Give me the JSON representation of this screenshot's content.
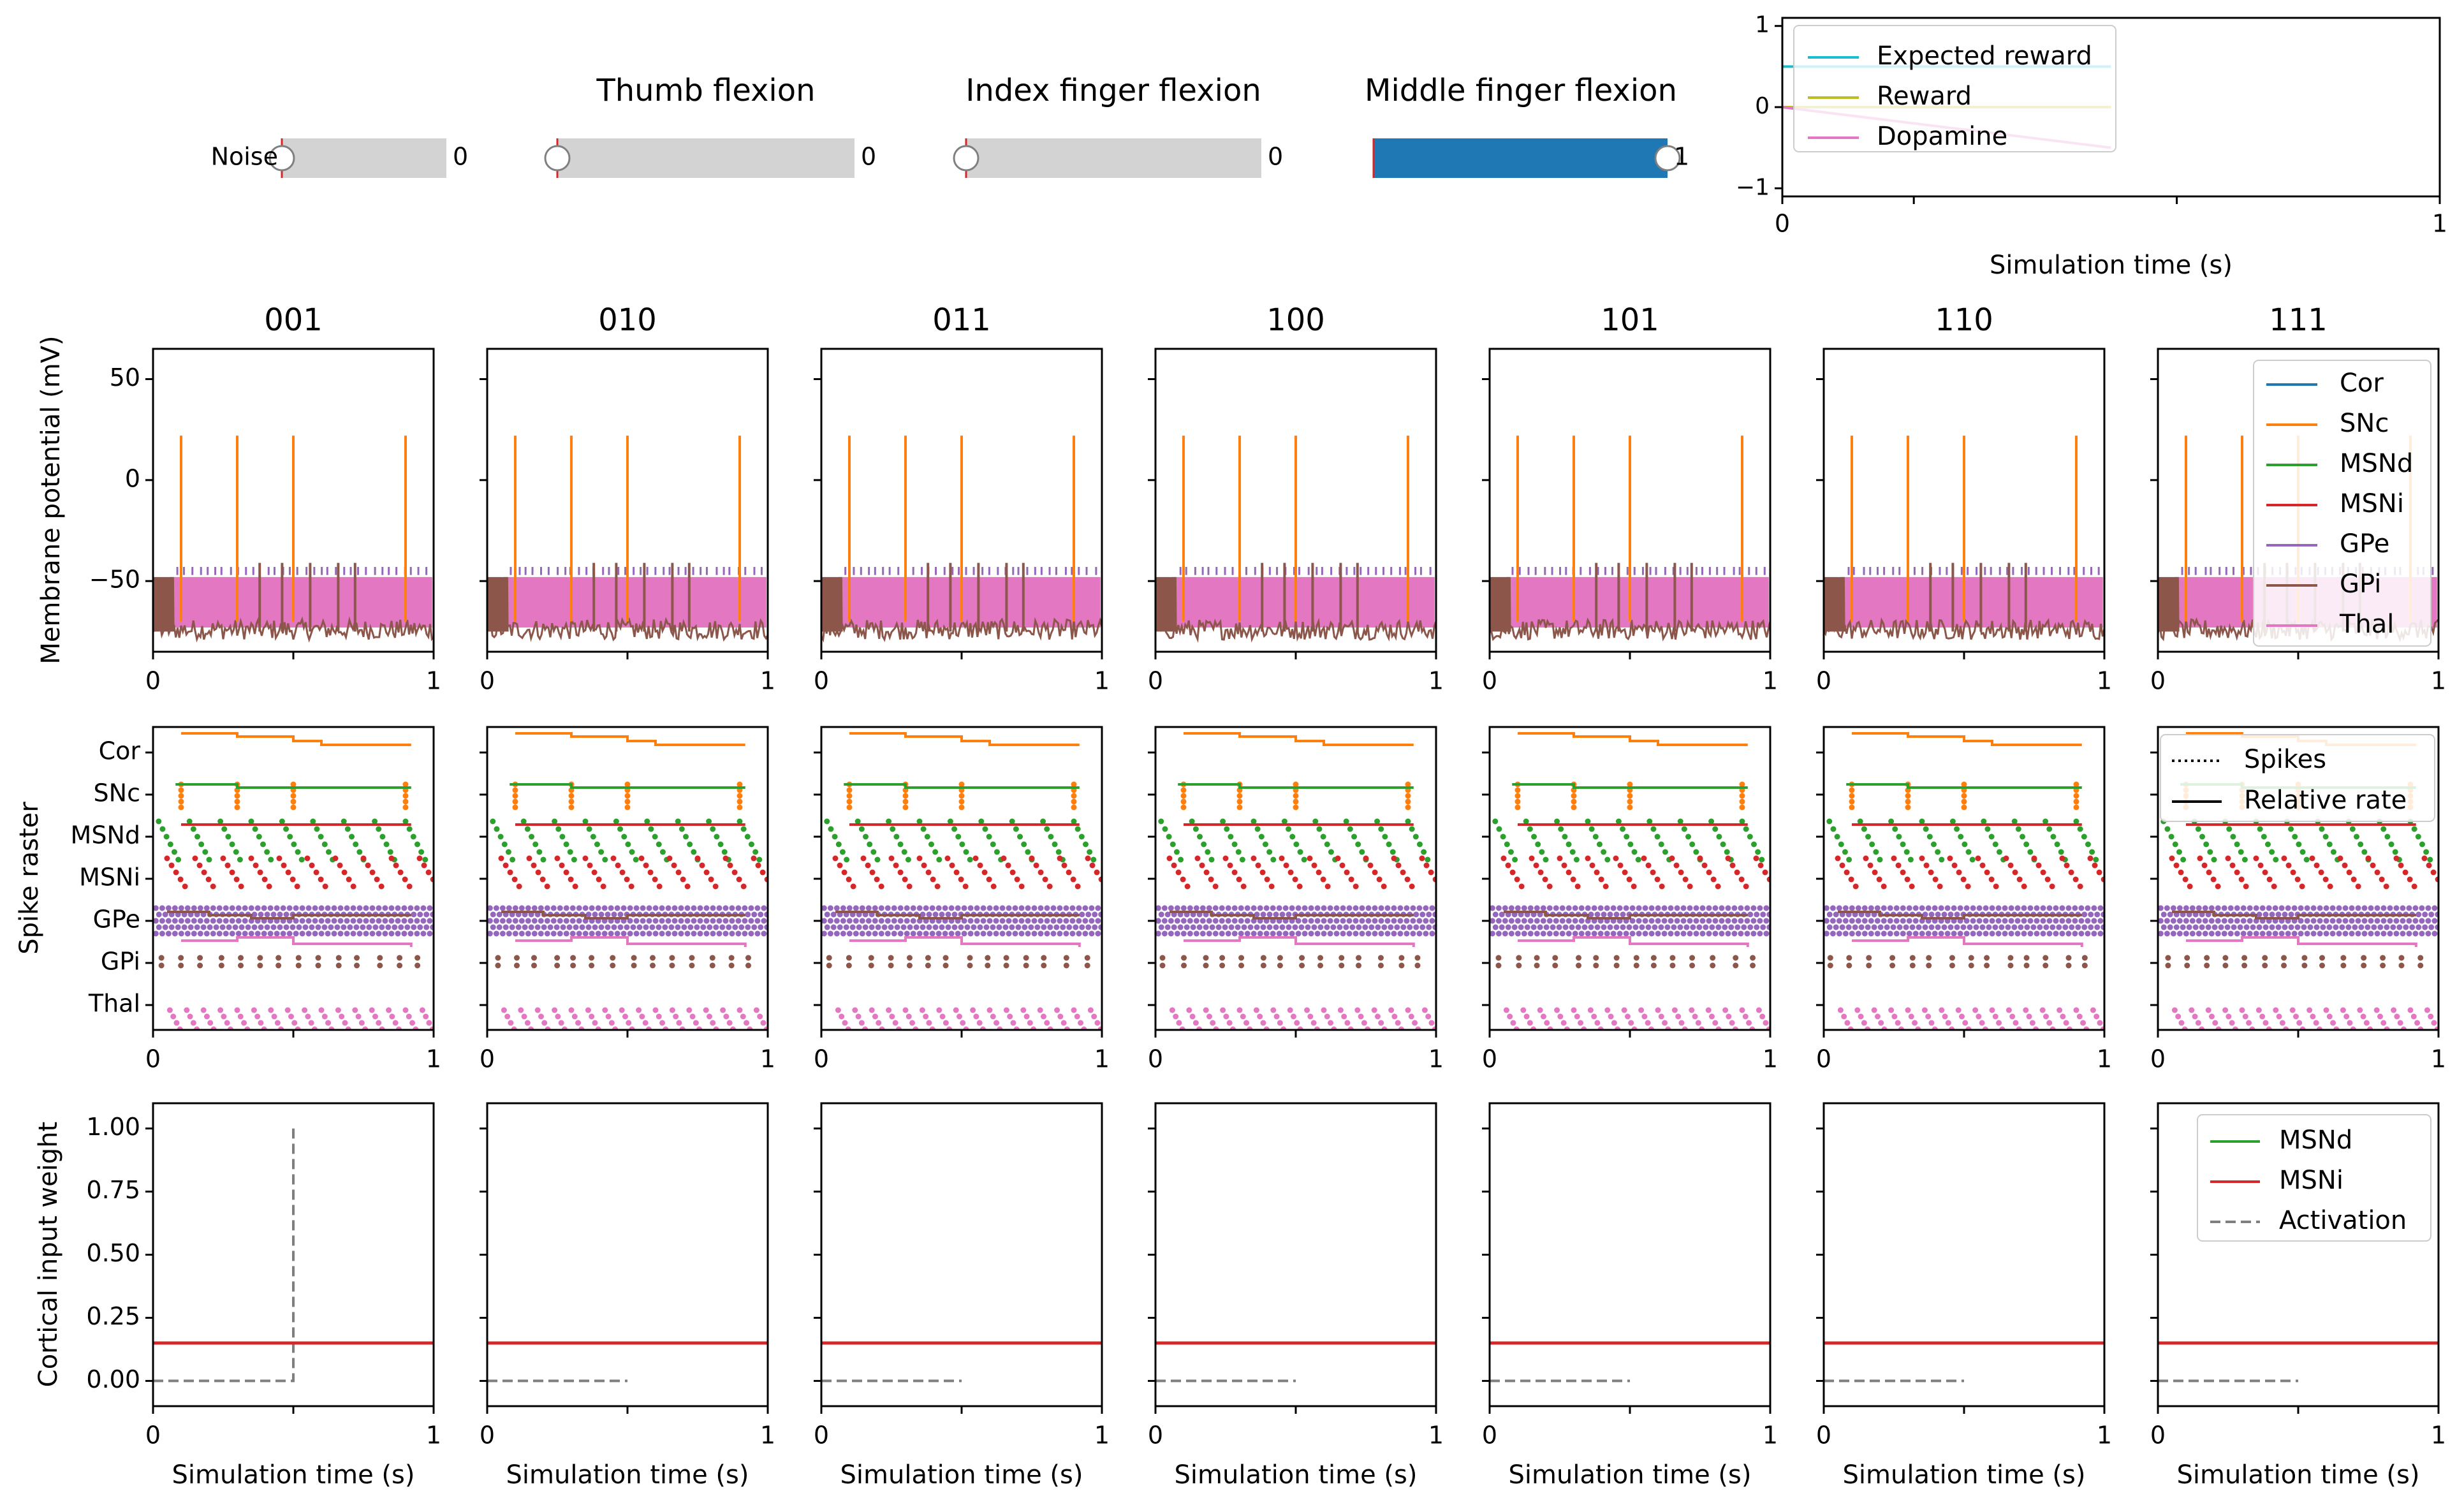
{
  "sliders": [
    {
      "label": "Noise",
      "title": "",
      "value_text": "0",
      "value": 0,
      "min": 0,
      "max": 1
    },
    {
      "label": "",
      "title": "Thumb flexion",
      "value_text": "0",
      "value": 0,
      "min": 0,
      "max": 1
    },
    {
      "label": "",
      "title": "Index finger flexion",
      "value_text": "0",
      "value": 0,
      "min": 0,
      "max": 1
    },
    {
      "label": "",
      "title": "Middle finger flexion",
      "value_text": "1",
      "value": 1,
      "min": 0,
      "max": 1
    }
  ],
  "colors": {
    "Cor": "#1f77b4",
    "SNc": "#ff7f0e",
    "MSNd": "#2ca02c",
    "MSNi": "#d62728",
    "GPe": "#9467bd",
    "GPi": "#8c564b",
    "Thal": "#e377c2",
    "expected": "#17becf",
    "reward": "#bcbd22",
    "dopamine": "#e377c2",
    "activation": "#7f7f7f",
    "slider_fill": "#1f77b4",
    "slider_track": "#d3d3d3"
  },
  "reward_chart": {
    "xlabel": "Simulation time (s)",
    "xticks": [
      "0",
      "1"
    ],
    "yticks": [
      "−1",
      "0",
      "1"
    ],
    "xlim": [
      0,
      1
    ],
    "ylim": [
      -1.1,
      1.1
    ],
    "legend": [
      "Expected reward",
      "Reward",
      "Dopamine"
    ],
    "legend_position": "upper-left",
    "series": {
      "expected": {
        "x": [
          0,
          0.5
        ],
        "y": [
          0.5,
          0.5
        ]
      },
      "reward": {
        "x": [
          0,
          0.5
        ],
        "y": [
          0,
          0
        ]
      },
      "dopamine": {
        "x": [
          0,
          0.5
        ],
        "y": [
          0,
          -0.5
        ]
      }
    }
  },
  "columns": [
    "001",
    "010",
    "011",
    "100",
    "101",
    "110",
    "111"
  ],
  "membrane": {
    "ylabel": "Membrane potential (mV)",
    "yticks": [
      "50",
      "0",
      "−50"
    ],
    "xticks": [
      "0",
      "1"
    ],
    "ylim": [
      -85,
      65
    ],
    "snc_spikes": [
      0.1,
      0.3,
      0.5,
      0.9
    ],
    "gpi_spikes": [
      0.38,
      0.46,
      0.56,
      0.66,
      0.72
    ],
    "legend": [
      "Cor",
      "SNc",
      "MSNd",
      "MSNi",
      "GPe",
      "GPi",
      "Thal"
    ],
    "legend_position": "upper-right"
  },
  "raster": {
    "ylabel": "Spike raster",
    "rows": [
      "Cor",
      "SNc",
      "MSNd",
      "MSNi",
      "GPe",
      "GPi",
      "Thal"
    ],
    "xticks": [
      "0",
      "1"
    ],
    "legend": [
      "Spikes",
      "Relative rate"
    ],
    "legend_position": "upper-right"
  },
  "weights": {
    "ylabel": "Cortical input weight",
    "yticks": [
      "1.00",
      "0.75",
      "0.50",
      "0.25",
      "0.00"
    ],
    "xticks": [
      "0",
      "1"
    ],
    "xlabel": "Simulation time (s)",
    "ylim": [
      -0.1,
      1.1
    ],
    "msn_weight": 0.15,
    "legend": [
      "MSNd",
      "MSNi",
      "Activation"
    ],
    "legend_position": "upper-right",
    "activation_first": {
      "x": [
        0,
        0.5,
        0.5
      ],
      "y": [
        0,
        0,
        1
      ]
    },
    "activation_other": {
      "x": [
        0,
        0.5
      ],
      "y": [
        0,
        0
      ]
    }
  }
}
